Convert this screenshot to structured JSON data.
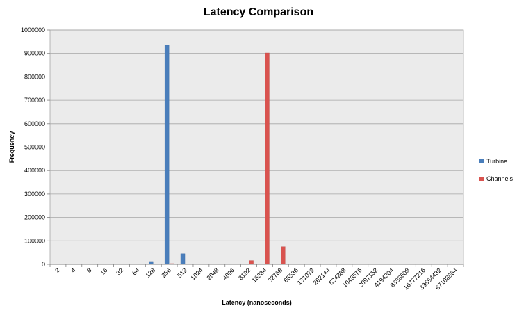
{
  "chart_data": {
    "type": "bar",
    "title": "Latency Comparison",
    "xlabel": "Latency (nanoseconds)",
    "ylabel": "Frequency",
    "ylim": [
      0,
      1000000
    ],
    "yticks": [
      "0",
      "100000",
      "200000",
      "300000",
      "400000",
      "500000",
      "600000",
      "700000",
      "800000",
      "900000",
      "1000000"
    ],
    "categories": [
      "2",
      "4",
      "8",
      "16",
      "32",
      "64",
      "128",
      "256",
      "512",
      "1024",
      "2048",
      "4096",
      "8192",
      "16384",
      "32768",
      "65536",
      "131072",
      "262144",
      "524288",
      "1048576",
      "2097152",
      "4194304",
      "8388608",
      "16777216",
      "33554432",
      "67108864"
    ],
    "series": [
      {
        "name": "Turbine",
        "color": "#4a7ebb",
        "values": [
          0,
          1000,
          0,
          0,
          0,
          0,
          12000,
          935000,
          45000,
          1500,
          1000,
          1000,
          1000,
          0,
          1500,
          2000,
          1500,
          1500,
          1000,
          1000,
          1000,
          1000,
          1000,
          1000,
          1000,
          0
        ]
      },
      {
        "name": "Channels",
        "color": "#d9534f",
        "values": [
          1500,
          1500,
          1500,
          1500,
          1500,
          1500,
          1500,
          3000,
          1000,
          1000,
          1000,
          1000,
          16000,
          902000,
          75000,
          1500,
          1500,
          1500,
          1500,
          1500,
          1500,
          1500,
          1500,
          1500,
          0,
          0
        ]
      }
    ],
    "legend_position": "right",
    "grid": true
  }
}
